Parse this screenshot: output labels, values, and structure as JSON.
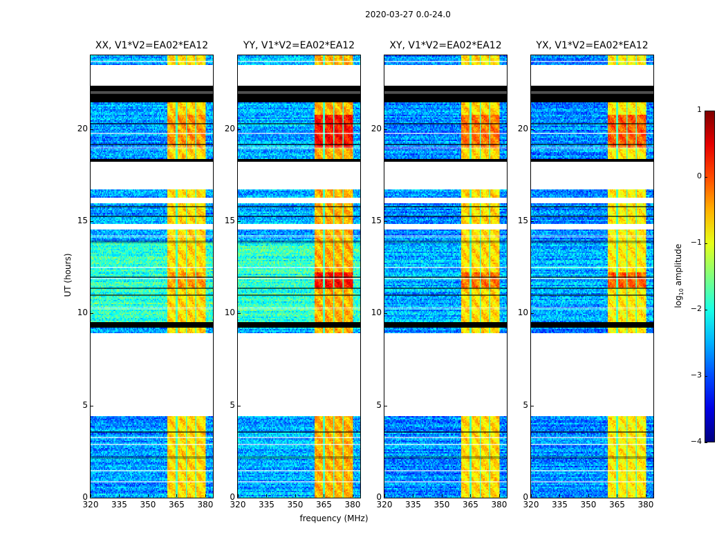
{
  "chart_data": {
    "type": "heatmap",
    "suptitle": "2020-03-27 0.0-24.0",
    "xlabel": "frequency (MHz)",
    "ylabel": "UT (hours)",
    "xlim": [
      320,
      384
    ],
    "ylim": [
      0,
      24
    ],
    "xticks": [
      320,
      335,
      350,
      365,
      380
    ],
    "yticks": [
      0,
      5,
      10,
      15,
      20
    ],
    "colorbar": {
      "label_main": "log",
      "label_sub": "10",
      "label_rest": " amplitude",
      "range": [
        -4,
        1
      ],
      "ticks": [
        1,
        0,
        -1,
        -2,
        -3,
        -4
      ],
      "colormap": "jet"
    },
    "signal_band_mhz": [
      360,
      380
    ],
    "channel_gaps_mhz": [
      365,
      370,
      375
    ],
    "flagged_white_hours": [
      [
        4.45,
        8.9
      ],
      [
        14.55,
        14.85
      ],
      [
        16.0,
        16.25
      ],
      [
        16.75,
        18.25
      ],
      [
        22.36,
        23.5
      ]
    ],
    "zero_black_hours": [
      [
        9.25,
        9.5
      ],
      [
        18.25,
        18.4
      ],
      [
        21.42,
        22.36
      ]
    ],
    "thin_black_lines_hours": [
      2.2,
      3.6,
      11.0,
      11.4,
      12.0,
      13.9,
      15.3,
      15.8,
      19.2,
      20.3
    ],
    "thin_white_lines_hours": [
      0.9,
      1.5,
      2.9,
      3.3,
      10.3,
      11.9,
      12.5,
      14.2,
      19.0,
      19.8,
      22.0,
      23.7
    ],
    "panels": [
      {
        "title": "XX, V1*V2=EA02*EA12",
        "background_log_amp": -2.6,
        "midday_background_log_amp": -1.9,
        "band_log_amp": -0.7,
        "peak_log_amp": -0.4
      },
      {
        "title": "YY, V1*V2=EA02*EA12",
        "background_log_amp": -2.5,
        "midday_background_log_amp": -1.9,
        "band_log_amp": -0.5,
        "peak_log_amp": 0.3
      },
      {
        "title": "XY, V1*V2=EA02*EA12",
        "background_log_amp": -2.7,
        "midday_background_log_amp": -2.5,
        "band_log_amp": -0.7,
        "peak_log_amp": -0.2
      },
      {
        "title": "YX, V1*V2=EA02*EA12",
        "background_log_amp": -2.7,
        "midday_background_log_amp": -2.5,
        "band_log_amp": -0.8,
        "peak_log_amp": -0.1
      }
    ]
  }
}
